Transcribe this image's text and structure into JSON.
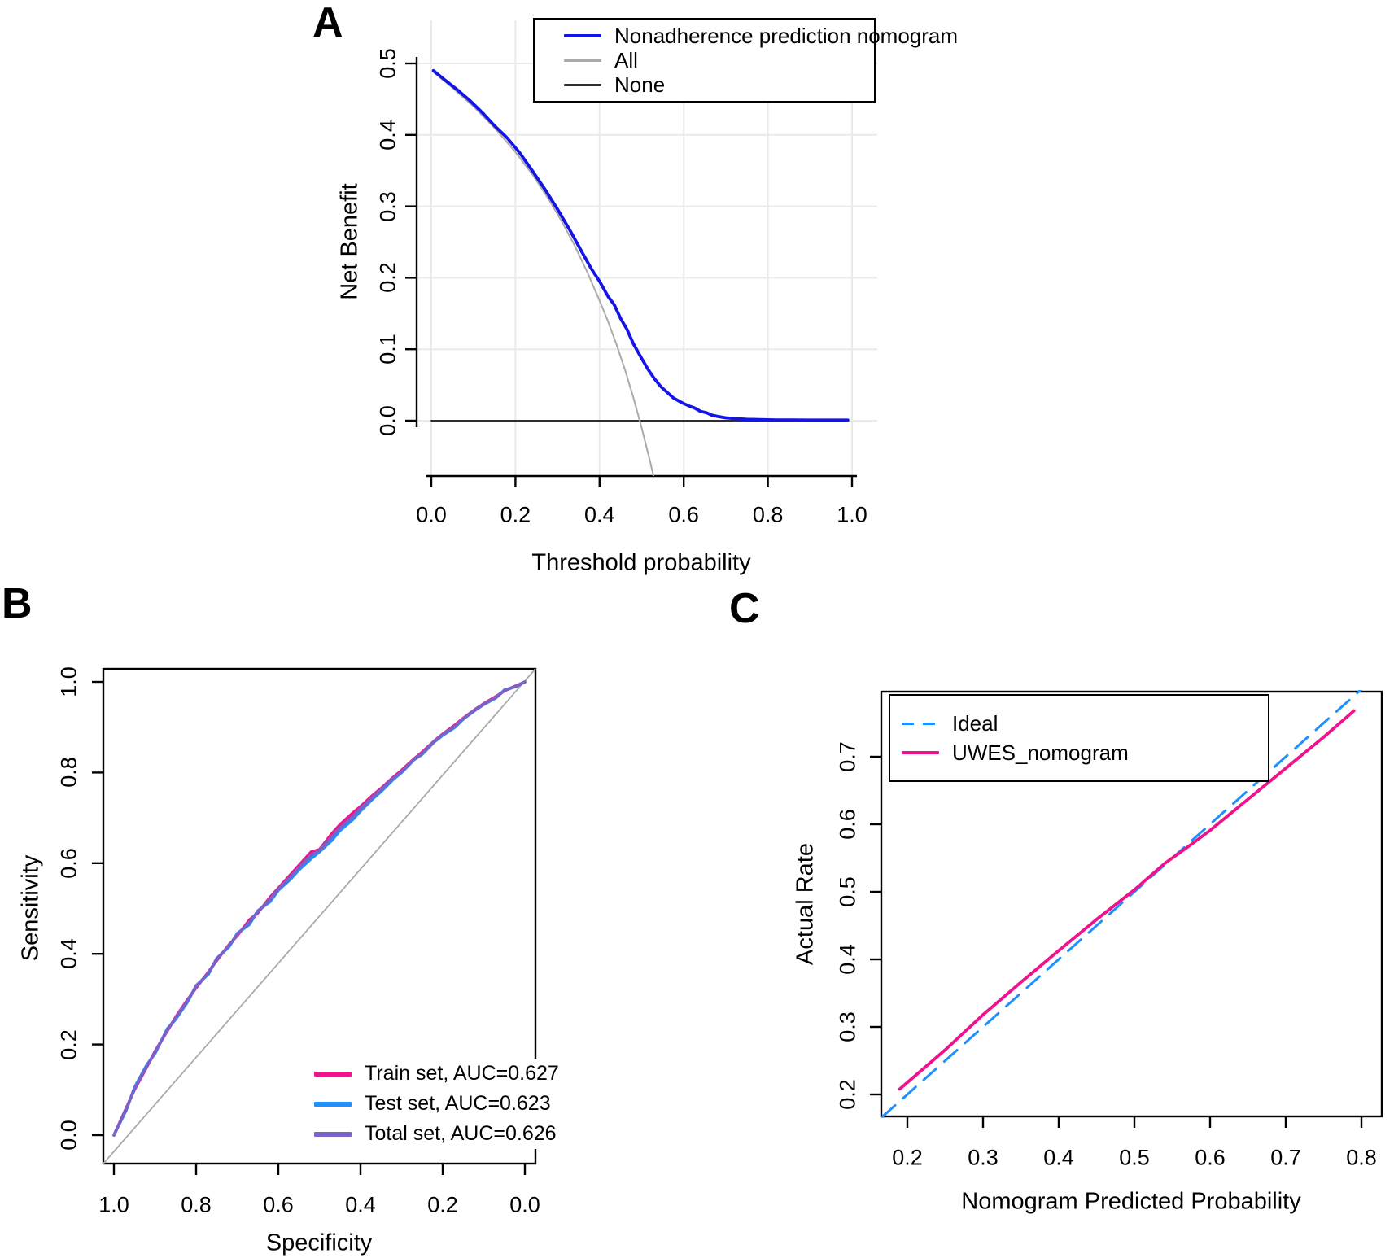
{
  "chart_data": [
    {
      "panel_label": "A",
      "type": "line",
      "description": "Decision curve analysis: net benefit vs threshold probability",
      "xlabel": "Threshold probability",
      "ylabel": "Net Benefit",
      "xlim": [
        0.0,
        1.0
      ],
      "ylim": [
        -0.077,
        0.5
      ],
      "xtick_labels": [
        "0.0",
        "0.2",
        "0.4",
        "0.6",
        "0.8",
        "1.0"
      ],
      "ytick_labels": [
        "0.0",
        "0.1",
        "0.2",
        "0.3",
        "0.4",
        "0.5"
      ],
      "grid": true,
      "frame": "axes-only",
      "grid_color": "#EAEAEA",
      "legend": {
        "position": "top-right",
        "bordered": true
      },
      "series": [
        {
          "name": "Nonadherence prediction nomogram",
          "color": "#1414E6",
          "dash": "solid",
          "width": 3.8,
          "points": [
            [
              0.005,
              0.49
            ],
            [
              0.03,
              0.478
            ],
            [
              0.06,
              0.464
            ],
            [
              0.09,
              0.449
            ],
            [
              0.12,
              0.432
            ],
            [
              0.15,
              0.413
            ],
            [
              0.18,
              0.396
            ],
            [
              0.21,
              0.375
            ],
            [
              0.24,
              0.35
            ],
            [
              0.27,
              0.324
            ],
            [
              0.3,
              0.296
            ],
            [
              0.33,
              0.266
            ],
            [
              0.36,
              0.234
            ],
            [
              0.38,
              0.213
            ],
            [
              0.4,
              0.195
            ],
            [
              0.42,
              0.174
            ],
            [
              0.435,
              0.162
            ],
            [
              0.45,
              0.143
            ],
            [
              0.465,
              0.128
            ],
            [
              0.48,
              0.108
            ],
            [
              0.5,
              0.087
            ],
            [
              0.515,
              0.072
            ],
            [
              0.53,
              0.059
            ],
            [
              0.545,
              0.048
            ],
            [
              0.56,
              0.04
            ],
            [
              0.575,
              0.032
            ],
            [
              0.59,
              0.027
            ],
            [
              0.6,
              0.024
            ],
            [
              0.615,
              0.02
            ],
            [
              0.625,
              0.018
            ],
            [
              0.64,
              0.013
            ],
            [
              0.655,
              0.011
            ],
            [
              0.665,
              0.008
            ],
            [
              0.68,
              0.006
            ],
            [
              0.7,
              0.004
            ],
            [
              0.72,
              0.003
            ],
            [
              0.75,
              0.002
            ],
            [
              0.78,
              0.0015
            ],
            [
              0.82,
              0.001
            ],
            [
              0.86,
              0.001
            ],
            [
              0.9,
              0.0008
            ],
            [
              0.95,
              0.0008
            ],
            [
              0.99,
              0.0008
            ]
          ]
        },
        {
          "name": "All",
          "color": "#AAAAAA",
          "dash": "solid",
          "width": 2,
          "points": [
            [
              0.005,
              0.488
            ],
            [
              0.05,
              0.466
            ],
            [
              0.1,
              0.44
            ],
            [
              0.15,
              0.41
            ],
            [
              0.2,
              0.376
            ],
            [
              0.24,
              0.345
            ],
            [
              0.28,
              0.309
            ],
            [
              0.31,
              0.279
            ],
            [
              0.34,
              0.246
            ],
            [
              0.37,
              0.209
            ],
            [
              0.4,
              0.168
            ],
            [
              0.42,
              0.139
            ],
            [
              0.44,
              0.107
            ],
            [
              0.46,
              0.072
            ],
            [
              0.48,
              0.033
            ],
            [
              0.5,
              -0.01
            ],
            [
              0.52,
              -0.057
            ],
            [
              0.535,
              -0.095
            ]
          ]
        },
        {
          "name": "None",
          "color": "#2E2E2E",
          "dash": "solid",
          "width": 2,
          "points": [
            [
              0.0,
              0.0
            ],
            [
              0.99,
              0.0
            ]
          ]
        }
      ]
    },
    {
      "panel_label": "B",
      "type": "line",
      "description": "ROC curves, x axis is specificity reversed from 1.0 to 0.0",
      "xlabel": "Specificity",
      "ylabel": "Sensitivity",
      "x_reversed": true,
      "xlim": [
        1.0,
        0.0
      ],
      "ylim": [
        0.0,
        1.0
      ],
      "xtick_labels": [
        "1.0",
        "0.8",
        "0.6",
        "0.4",
        "0.2",
        "0.0"
      ],
      "ytick_labels": [
        "0.0",
        "0.2",
        "0.4",
        "0.6",
        "0.8",
        "1.0"
      ],
      "grid": false,
      "frame": "box",
      "diagonal_reference": true,
      "diagonal_color": "#A9A9A9",
      "legend": {
        "position": "bottom-right",
        "bordered": false
      },
      "series": [
        {
          "name": "Train set, AUC=0.627",
          "color": "#F0148E",
          "dash": "solid",
          "width": 3.6,
          "points": [
            [
              1.0,
              0.0
            ],
            [
              0.97,
              0.06
            ],
            [
              0.95,
              0.1
            ],
            [
              0.92,
              0.15
            ],
            [
              0.9,
              0.185
            ],
            [
              0.87,
              0.23
            ],
            [
              0.85,
              0.26
            ],
            [
              0.82,
              0.3
            ],
            [
              0.8,
              0.325
            ],
            [
              0.77,
              0.36
            ],
            [
              0.75,
              0.385
            ],
            [
              0.72,
              0.42
            ],
            [
              0.7,
              0.44
            ],
            [
              0.67,
              0.475
            ],
            [
              0.65,
              0.49
            ],
            [
              0.62,
              0.525
            ],
            [
              0.6,
              0.545
            ],
            [
              0.57,
              0.575
            ],
            [
              0.55,
              0.595
            ],
            [
              0.52,
              0.625
            ],
            [
              0.5,
              0.63
            ],
            [
              0.47,
              0.665
            ],
            [
              0.45,
              0.685
            ],
            [
              0.42,
              0.71
            ],
            [
              0.4,
              0.725
            ],
            [
              0.37,
              0.75
            ],
            [
              0.35,
              0.765
            ],
            [
              0.32,
              0.79
            ],
            [
              0.3,
              0.805
            ],
            [
              0.27,
              0.83
            ],
            [
              0.25,
              0.845
            ],
            [
              0.22,
              0.87
            ],
            [
              0.2,
              0.885
            ],
            [
              0.17,
              0.905
            ],
            [
              0.15,
              0.92
            ],
            [
              0.12,
              0.94
            ],
            [
              0.1,
              0.952
            ],
            [
              0.07,
              0.968
            ],
            [
              0.05,
              0.98
            ],
            [
              0.02,
              0.992
            ],
            [
              0.0,
              1.0
            ]
          ]
        },
        {
          "name": "Test set, AUC=0.623",
          "color": "#1E90FF",
          "dash": "solid",
          "width": 3.6,
          "points": [
            [
              1.0,
              0.0
            ],
            [
              0.97,
              0.055
            ],
            [
              0.95,
              0.105
            ],
            [
              0.92,
              0.155
            ],
            [
              0.9,
              0.18
            ],
            [
              0.87,
              0.235
            ],
            [
              0.85,
              0.255
            ],
            [
              0.82,
              0.295
            ],
            [
              0.8,
              0.33
            ],
            [
              0.77,
              0.355
            ],
            [
              0.75,
              0.39
            ],
            [
              0.72,
              0.415
            ],
            [
              0.7,
              0.445
            ],
            [
              0.67,
              0.465
            ],
            [
              0.65,
              0.495
            ],
            [
              0.62,
              0.515
            ],
            [
              0.6,
              0.54
            ],
            [
              0.57,
              0.565
            ],
            [
              0.55,
              0.585
            ],
            [
              0.52,
              0.61
            ],
            [
              0.5,
              0.625
            ],
            [
              0.47,
              0.65
            ],
            [
              0.45,
              0.672
            ],
            [
              0.42,
              0.695
            ],
            [
              0.4,
              0.715
            ],
            [
              0.37,
              0.742
            ],
            [
              0.35,
              0.758
            ],
            [
              0.32,
              0.785
            ],
            [
              0.3,
              0.8
            ],
            [
              0.27,
              0.828
            ],
            [
              0.25,
              0.84
            ],
            [
              0.22,
              0.868
            ],
            [
              0.2,
              0.882
            ],
            [
              0.17,
              0.9
            ],
            [
              0.15,
              0.918
            ],
            [
              0.12,
              0.938
            ],
            [
              0.1,
              0.95
            ],
            [
              0.07,
              0.965
            ],
            [
              0.05,
              0.982
            ],
            [
              0.02,
              0.99
            ],
            [
              0.0,
              1.0
            ]
          ]
        },
        {
          "name": "Total set, AUC=0.626",
          "color": "#7A62C9",
          "dash": "solid",
          "width": 3.6,
          "points": [
            [
              1.0,
              0.0
            ],
            [
              0.97,
              0.058
            ],
            [
              0.95,
              0.102
            ],
            [
              0.92,
              0.152
            ],
            [
              0.9,
              0.183
            ],
            [
              0.87,
              0.232
            ],
            [
              0.85,
              0.258
            ],
            [
              0.82,
              0.298
            ],
            [
              0.8,
              0.328
            ],
            [
              0.77,
              0.358
            ],
            [
              0.75,
              0.388
            ],
            [
              0.72,
              0.418
            ],
            [
              0.7,
              0.443
            ],
            [
              0.67,
              0.47
            ],
            [
              0.65,
              0.493
            ],
            [
              0.62,
              0.52
            ],
            [
              0.6,
              0.543
            ],
            [
              0.57,
              0.57
            ],
            [
              0.55,
              0.59
            ],
            [
              0.52,
              0.618
            ],
            [
              0.5,
              0.628
            ],
            [
              0.47,
              0.658
            ],
            [
              0.45,
              0.678
            ],
            [
              0.42,
              0.702
            ],
            [
              0.4,
              0.72
            ],
            [
              0.37,
              0.746
            ],
            [
              0.35,
              0.762
            ],
            [
              0.32,
              0.788
            ],
            [
              0.3,
              0.802
            ],
            [
              0.27,
              0.829
            ],
            [
              0.25,
              0.842
            ],
            [
              0.22,
              0.869
            ],
            [
              0.2,
              0.884
            ],
            [
              0.17,
              0.902
            ],
            [
              0.15,
              0.919
            ],
            [
              0.12,
              0.939
            ],
            [
              0.1,
              0.951
            ],
            [
              0.07,
              0.966
            ],
            [
              0.05,
              0.981
            ],
            [
              0.02,
              0.991
            ],
            [
              0.0,
              1.0
            ]
          ]
        }
      ]
    },
    {
      "panel_label": "C",
      "type": "line",
      "description": "Calibration curve: actual rate vs nomogram predicted probability",
      "xlabel": "Nomogram Predicted Probability",
      "ylabel": "Actual Rate",
      "xlim": [
        0.166,
        0.828
      ],
      "ylim": [
        0.167,
        0.796
      ],
      "xtick_labels": [
        "0.2",
        "0.3",
        "0.4",
        "0.5",
        "0.6",
        "0.7",
        "0.8"
      ],
      "ytick_labels": [
        "0.2",
        "0.3",
        "0.4",
        "0.5",
        "0.6",
        "0.7"
      ],
      "grid": false,
      "frame": "box",
      "legend": {
        "position": "top-left",
        "bordered": true
      },
      "series": [
        {
          "name": "Ideal",
          "color": "#1E90FF",
          "dash": "dashed",
          "width": 3,
          "points": [
            [
              0.167,
              0.167
            ],
            [
              0.81,
              0.81
            ]
          ]
        },
        {
          "name": "UWES_nomogram",
          "color": "#F0128C",
          "dash": "solid",
          "width": 3.8,
          "points": [
            [
              0.19,
              0.208
            ],
            [
              0.25,
              0.266
            ],
            [
              0.3,
              0.318
            ],
            [
              0.35,
              0.366
            ],
            [
              0.4,
              0.413
            ],
            [
              0.45,
              0.459
            ],
            [
              0.5,
              0.503
            ],
            [
              0.54,
              0.542
            ],
            [
              0.57,
              0.566
            ],
            [
              0.6,
              0.591
            ],
            [
              0.65,
              0.637
            ],
            [
              0.7,
              0.683
            ],
            [
              0.75,
              0.729
            ],
            [
              0.79,
              0.768
            ]
          ]
        }
      ]
    }
  ]
}
